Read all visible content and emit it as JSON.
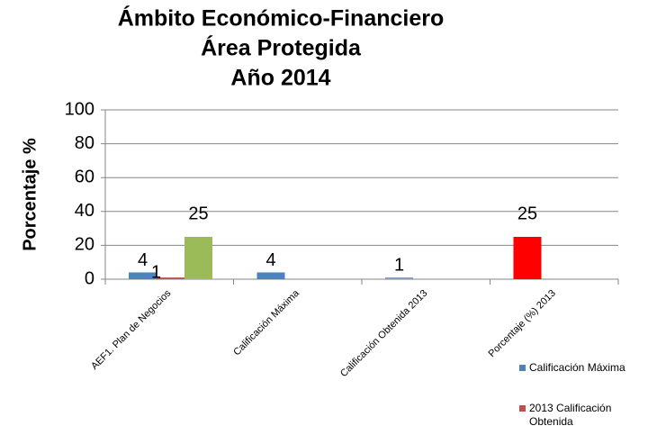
{
  "chart_data": {
    "type": "bar",
    "title": [
      "Ámbito Económico-Financiero",
      "Área Protegida",
      "Año 2014"
    ],
    "y_label": "Porcentaje %",
    "categories": [
      "AEF1. Plan de Negocios",
      "Calificación Máxima",
      "Calificación Obtenida 2013",
      "Porcentaje (%) 2013"
    ],
    "series": [
      {
        "name": "Calificación Máxima",
        "color": "#4f81bd",
        "point_colors": [
          "#4f81bd",
          "#4f81bd",
          "#8197b8",
          "#ff0000"
        ],
        "values": [
          4,
          4,
          1,
          25
        ]
      },
      {
        "name": "2013 Calificación Obtenida",
        "color": "#c0504d",
        "values": [
          1,
          null,
          null,
          null
        ]
      },
      {
        "color": "#9bbb59",
        "values": [
          25,
          null,
          null,
          null
        ]
      }
    ],
    "ylim": [
      0,
      100
    ],
    "yticks": [
      0,
      20,
      40,
      60,
      80,
      100
    ],
    "grid": true,
    "legend": "right"
  }
}
